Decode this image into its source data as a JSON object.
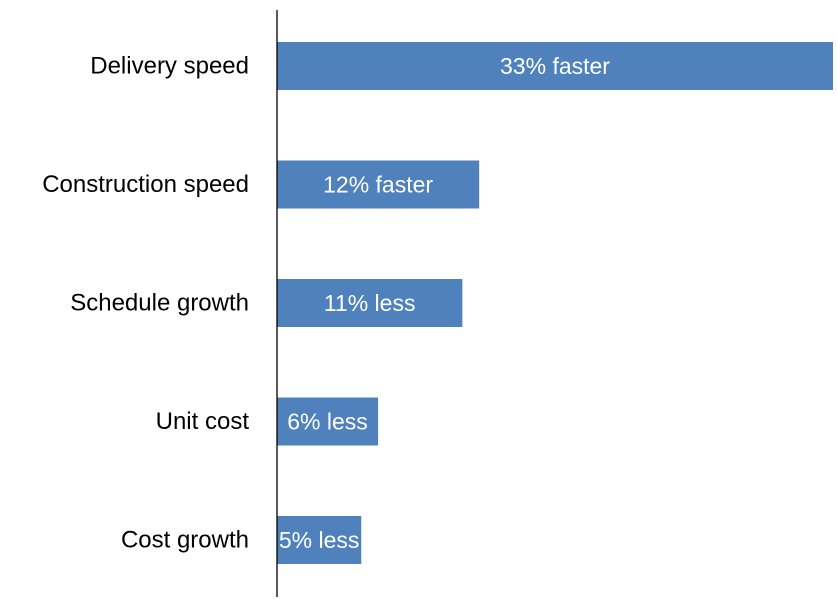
{
  "chart_data": {
    "type": "bar",
    "orientation": "horizontal",
    "categories": [
      "Delivery speed",
      "Construction speed",
      "Schedule growth",
      "Unit cost",
      "Cost growth"
    ],
    "values": [
      33,
      12,
      11,
      6,
      5
    ],
    "data_labels": [
      "33% faster",
      "12% faster",
      "11% less",
      "6% less",
      "5% less"
    ],
    "title": "",
    "xlabel": "",
    "ylabel": "",
    "xlim": [
      0,
      33
    ],
    "grid": false,
    "legend": "none",
    "bar_color": "#4F81BD",
    "axis_color": "#000000"
  }
}
